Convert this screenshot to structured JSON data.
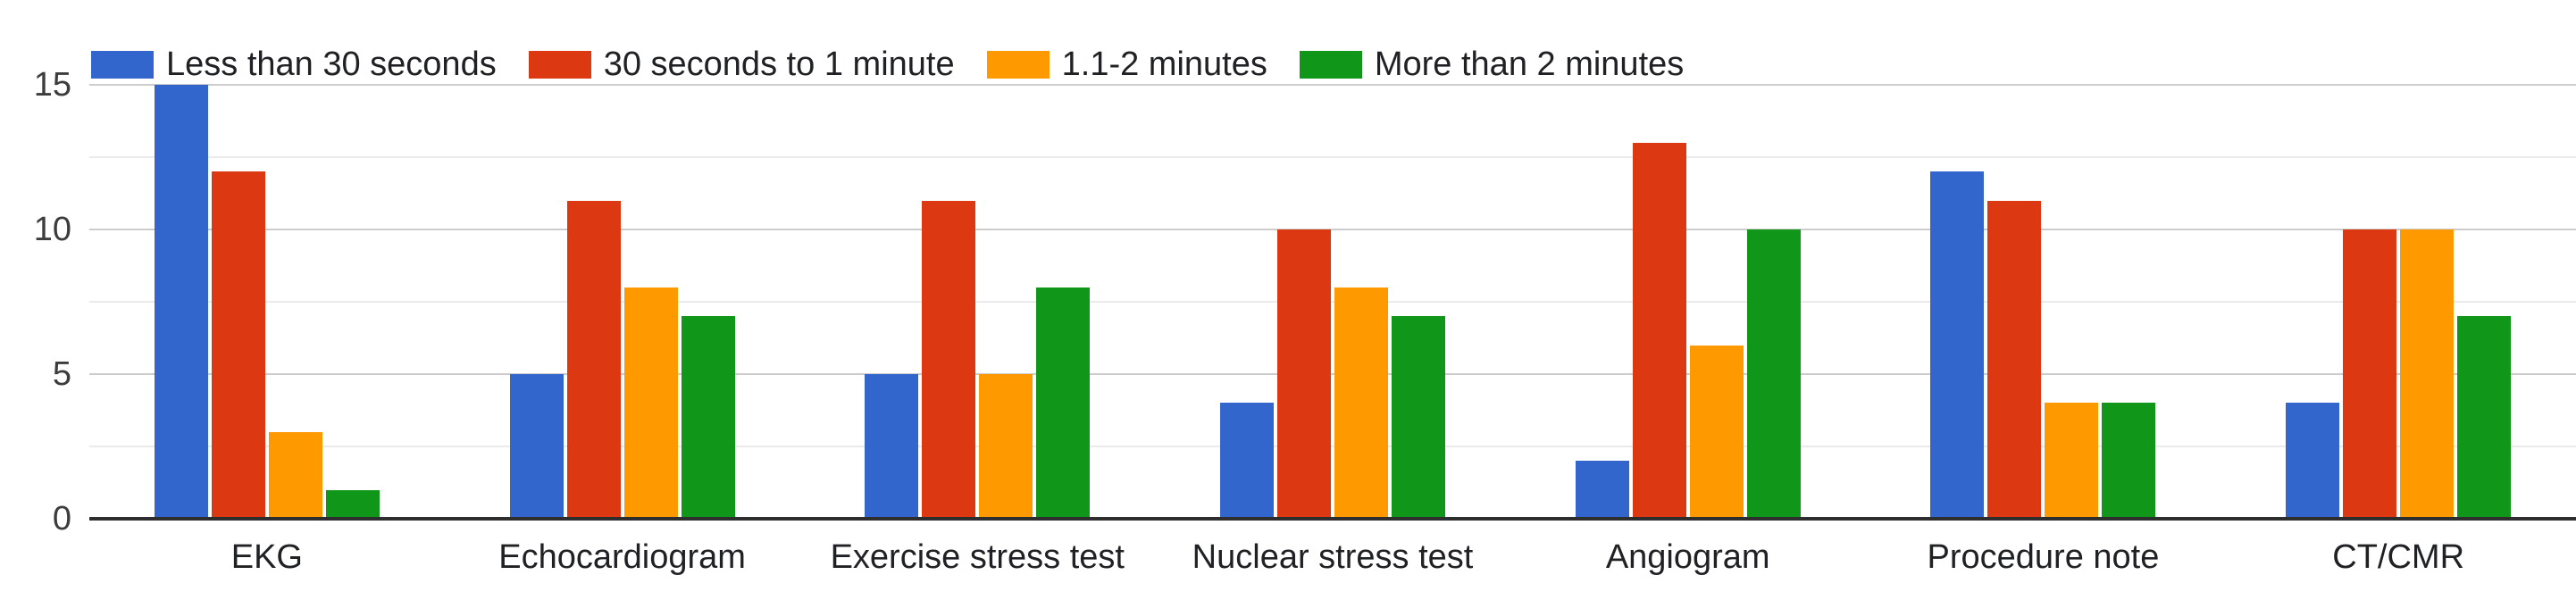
{
  "chart_data": {
    "type": "bar",
    "title": "",
    "xlabel": "",
    "ylabel": "",
    "categories": [
      "EKG",
      "Echocardiogram",
      "Exercise stress test",
      "Nuclear stress test",
      "Angiogram",
      "Procedure note",
      "CT/CMR"
    ],
    "series": [
      {
        "name": "Less than 30 seconds",
        "color": "#3366cc",
        "values": [
          15,
          5,
          5,
          4,
          2,
          12,
          4
        ]
      },
      {
        "name": "30 seconds to 1 minute",
        "color": "#dc3912",
        "values": [
          12,
          11,
          11,
          10,
          13,
          11,
          10
        ]
      },
      {
        "name": "1.1-2 minutes",
        "color": "#ff9900",
        "values": [
          3,
          8,
          5,
          8,
          6,
          4,
          10
        ]
      },
      {
        "name": "More than 2 minutes",
        "color": "#109618",
        "values": [
          1,
          7,
          8,
          7,
          10,
          4,
          7
        ]
      }
    ],
    "ylim": [
      0,
      15
    ],
    "yticks": [
      0,
      5,
      10,
      15
    ],
    "minor_gridline_step": 2.5,
    "grid": true,
    "legend_position": "top"
  },
  "colors": {
    "major_gridline": "#cccccc",
    "minor_gridline": "#ebebeb",
    "axis_baseline": "#2e2e2e",
    "tick_label": "#3c3c3c",
    "category_label": "#202124",
    "legend_label": "#202124",
    "background": "#ffffff"
  }
}
